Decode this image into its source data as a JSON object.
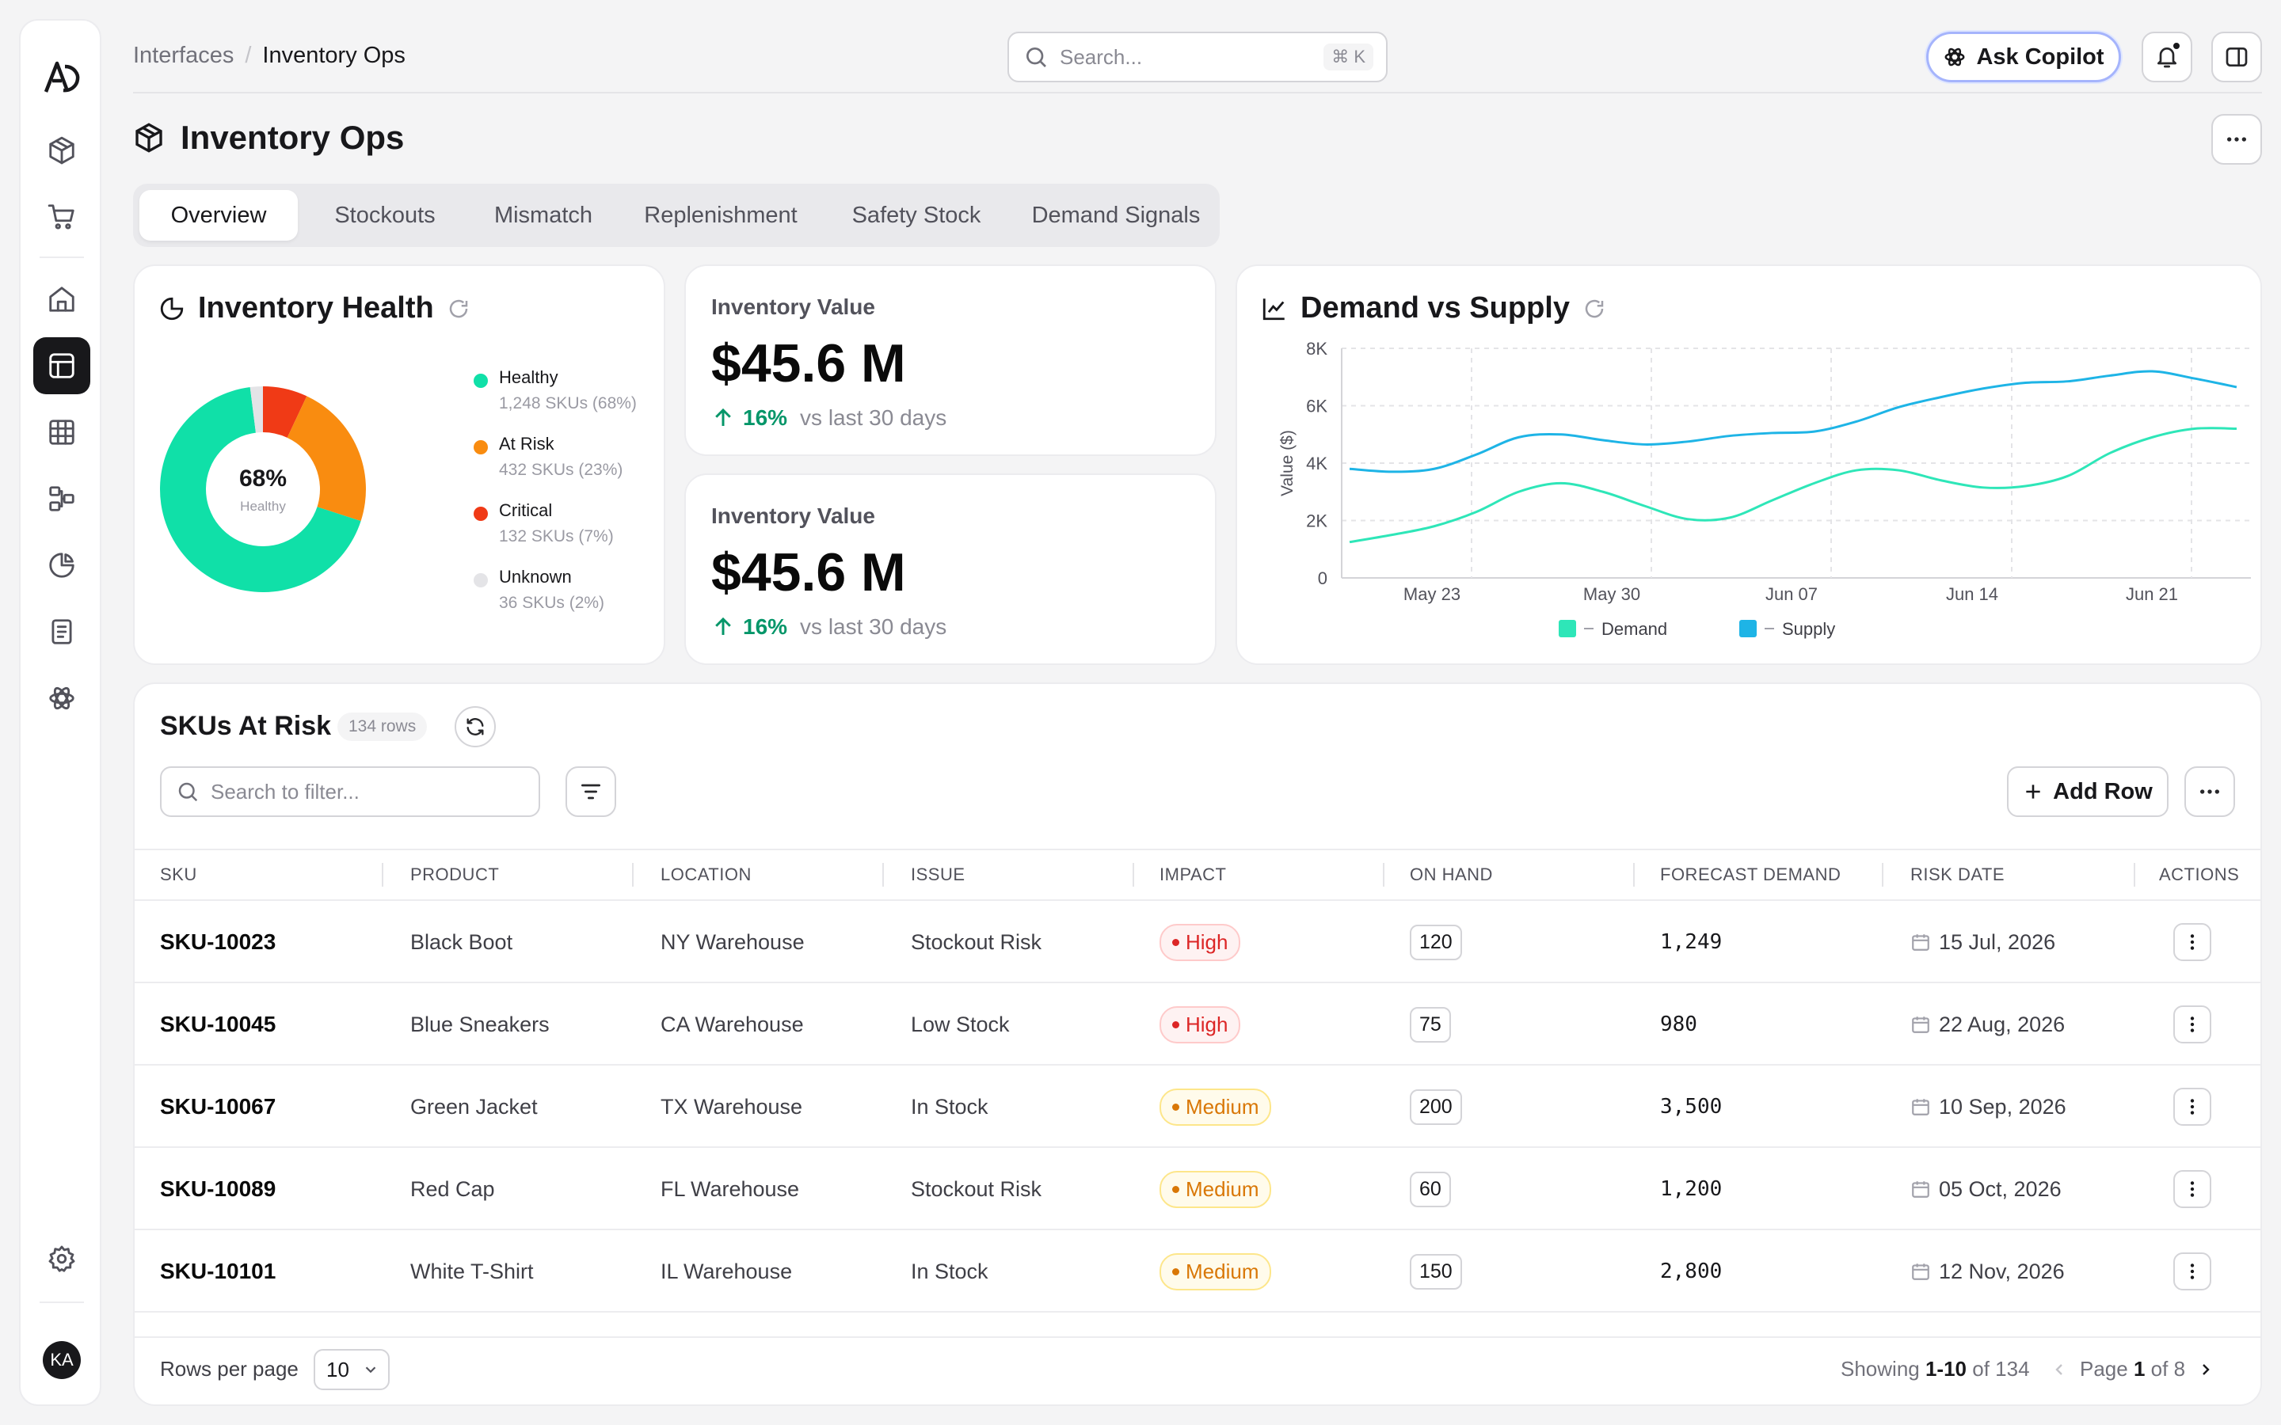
{
  "breadcrumb": {
    "parent": "Interfaces",
    "current": "Inventory Ops"
  },
  "search": {
    "placeholder": "Search...",
    "shortcut": "⌘ K"
  },
  "header": {
    "copilot_label": "Ask Copilot"
  },
  "user": {
    "initials": "KA"
  },
  "page": {
    "title": "Inventory Ops"
  },
  "tabs": [
    {
      "label": "Overview",
      "active": true
    },
    {
      "label": "Stockouts"
    },
    {
      "label": "Mismatch"
    },
    {
      "label": "Replenishment"
    },
    {
      "label": "Safety Stock"
    },
    {
      "label": "Demand Signals"
    }
  ],
  "health": {
    "title": "Inventory Health",
    "center_value": "68%",
    "center_label": "Healthy",
    "segments": [
      {
        "label": "Healthy",
        "sub": "1,248 SKUs (68%)",
        "percent": 68,
        "color": "#10e0a8"
      },
      {
        "label": "At Risk",
        "sub": "432 SKUs (23%)",
        "percent": 23,
        "color": "#f98c10"
      },
      {
        "label": "Critical",
        "sub": "132 SKUs (7%)",
        "percent": 7,
        "color": "#f03a16"
      },
      {
        "label": "Unknown",
        "sub": "36 SKUs (2%)",
        "percent": 2,
        "color": "#e4e4e7"
      }
    ]
  },
  "kpis": [
    {
      "label": "Inventory Value",
      "value": "$45.6 M",
      "delta": "16%",
      "vs": "vs last 30 days"
    },
    {
      "label": "Inventory Value",
      "value": "$45.6 M",
      "delta": "16%",
      "vs": "vs last 30 days"
    }
  ],
  "chart_data": {
    "type": "line",
    "title": "Demand vs Supply",
    "ylabel": "Value ($)",
    "ylim": [
      0,
      8000
    ],
    "yticks": [
      "0",
      "2K",
      "4K",
      "6K",
      "8K"
    ],
    "xticks": [
      "May 23",
      "May 30",
      "Jun 07",
      "Jun 14",
      "Jun 21"
    ],
    "grid": true,
    "legend_position": "bottom",
    "series": [
      {
        "name": "Demand",
        "color": "#2ee6b8",
        "values": [
          1250,
          1500,
          1800,
          2300,
          3000,
          3300,
          3000,
          2500,
          2050,
          2100,
          2700,
          3300,
          3750,
          3750,
          3400,
          3150,
          3200,
          3550,
          4350,
          4900,
          5200,
          5200
        ]
      },
      {
        "name": "Supply",
        "color": "#1eb4e6",
        "values": [
          3800,
          3700,
          3800,
          4300,
          4900,
          5000,
          4800,
          4650,
          4750,
          4950,
          5050,
          5100,
          5450,
          5950,
          6300,
          6600,
          6800,
          6850,
          7050,
          7200,
          6950,
          6650
        ]
      }
    ]
  },
  "table": {
    "title": "SKUs At Risk",
    "rows_count": "134 rows",
    "filter_placeholder": "Search to filter...",
    "add_row_label": "Add Row",
    "columns": [
      "SKU",
      "PRODUCT",
      "LOCATION",
      "ISSUE",
      "IMPACT",
      "ON HAND",
      "FORECAST DEMAND",
      "RISK DATE",
      "ACTIONS"
    ],
    "rows": [
      {
        "sku": "SKU-10023",
        "product": "Black Boot",
        "location": "NY Warehouse",
        "issue": "Stockout Risk",
        "impact": "High",
        "on_hand": "120",
        "forecast": "1,249",
        "date": "15 Jul, 2026"
      },
      {
        "sku": "SKU-10045",
        "product": "Blue Sneakers",
        "location": "CA Warehouse",
        "issue": "Low Stock",
        "impact": "High",
        "on_hand": "75",
        "forecast": "980",
        "date": "22 Aug, 2026"
      },
      {
        "sku": "SKU-10067",
        "product": "Green Jacket",
        "location": "TX Warehouse",
        "issue": "In Stock",
        "impact": "Medium",
        "on_hand": "200",
        "forecast": "3,500",
        "date": "10 Sep, 2026"
      },
      {
        "sku": "SKU-10089",
        "product": "Red Cap",
        "location": "FL Warehouse",
        "issue": "Stockout Risk",
        "impact": "Medium",
        "on_hand": "60",
        "forecast": "1,200",
        "date": "05 Oct, 2026"
      },
      {
        "sku": "SKU-10101",
        "product": "White T-Shirt",
        "location": "IL Warehouse",
        "issue": "In Stock",
        "impact": "Medium",
        "on_hand": "150",
        "forecast": "2,800",
        "date": "12 Nov, 2026"
      }
    ],
    "footer": {
      "rows_per_page_label": "Rows per page",
      "rows_per_page": "10",
      "showing_prefix": "Showing",
      "showing_range": "1-10",
      "showing_of": "of 134",
      "page_prefix": "Page",
      "page_current": "1",
      "page_of": "of 8"
    }
  }
}
